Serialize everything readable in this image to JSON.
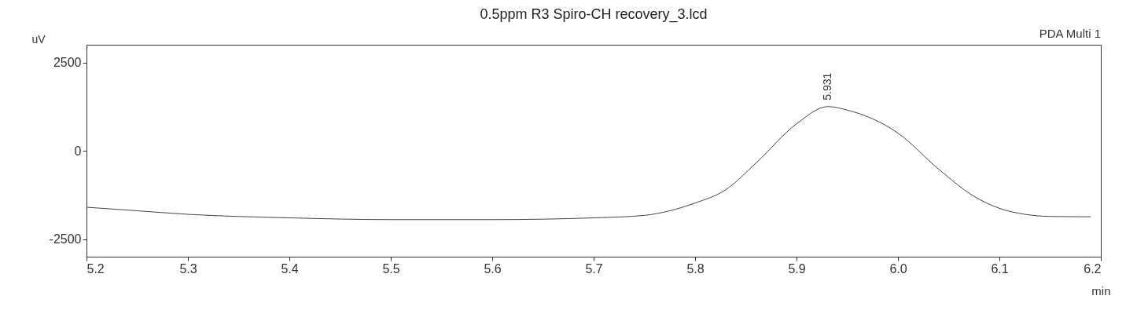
{
  "chart_data": {
    "type": "line",
    "title": "0.5ppm R3 Spiro-CH recovery_3.lcd",
    "xlabel": "min",
    "ylabel": "uV",
    "x": [
      5.2,
      5.25,
      5.3,
      5.4,
      5.5,
      5.6,
      5.7,
      5.75,
      5.775,
      5.8,
      5.83,
      5.86,
      5.9,
      5.931,
      5.95,
      6.0,
      6.04,
      6.075,
      6.1,
      6.125,
      6.15,
      6.19
    ],
    "series": [
      {
        "color": "#444444",
        "values": [
          -1600,
          -1700,
          -1800,
          -1900,
          -1950,
          -1950,
          -1900,
          -1830,
          -1700,
          -1480,
          -1110,
          -350,
          760,
          1250,
          1150,
          500,
          -520,
          -1290,
          -1630,
          -1800,
          -1860,
          -1870
        ]
      }
    ],
    "xlim": [
      5.2,
      6.2
    ],
    "xticks": [
      5.2,
      5.3,
      5.4,
      5.5,
      5.6,
      5.7,
      5.8,
      5.9,
      {
        "value": 6,
        "label": "6.0"
      },
      6.1,
      6.2
    ],
    "ylim": [
      -3000,
      3000
    ],
    "yticks": [
      -2500,
      0,
      2500
    ],
    "grid": false,
    "annotations": [
      {
        "text": "5.931",
        "x": 5.931,
        "y": 1250
      },
      "PDA Multi 1"
    ]
  }
}
